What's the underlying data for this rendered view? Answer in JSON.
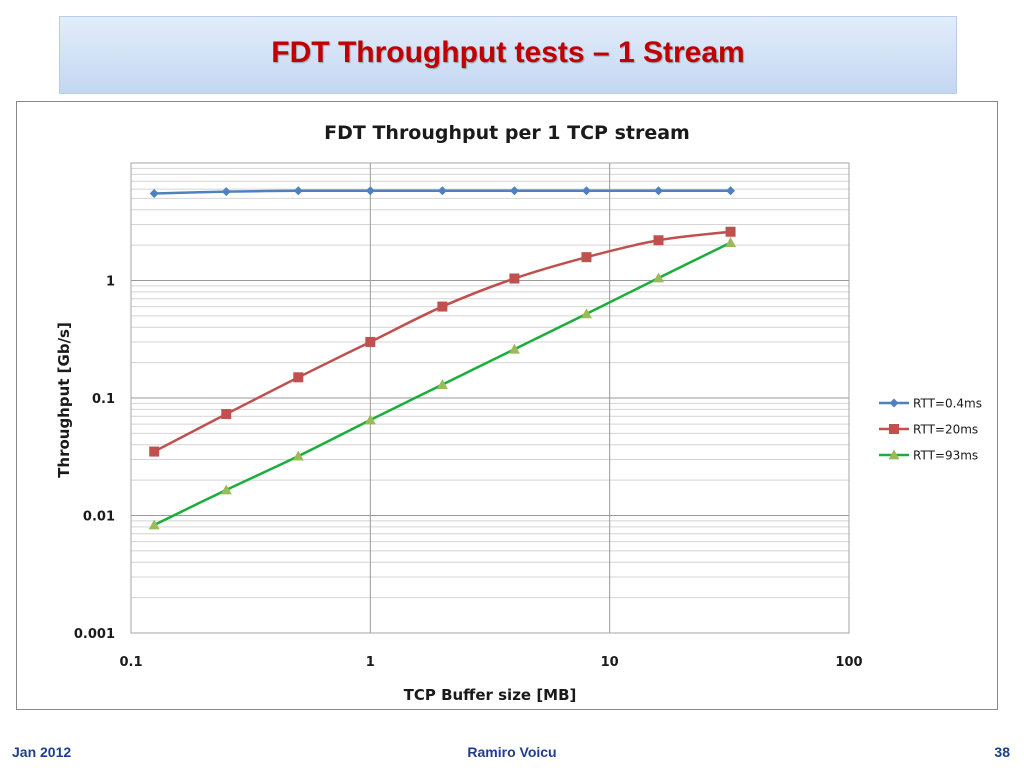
{
  "slide": {
    "title": "FDT Throughput tests – 1 Stream",
    "footer_left": "Jan 2012",
    "footer_center": "Ramiro Voicu",
    "footer_right": "38"
  },
  "colors": {
    "title": "#c00000",
    "footer": "#1f3d8c",
    "banner": "#c3d7f2"
  },
  "chart_data": {
    "type": "line",
    "title": "FDT Throughput  per 1 TCP stream",
    "xlabel": "TCP Buffer size [MB]",
    "ylabel": "Throughput [Gb/s]",
    "xscale": "log",
    "yscale": "log",
    "xlim": [
      0.1,
      100
    ],
    "ylim": [
      0.001,
      10
    ],
    "xticks": [
      {
        "value": 0.1,
        "label": "0.1"
      },
      {
        "value": 1,
        "label": "1"
      },
      {
        "value": 10,
        "label": "10"
      },
      {
        "value": 100,
        "label": "100"
      }
    ],
    "yticks": [
      {
        "value": 0.001,
        "label": "0.001"
      },
      {
        "value": 0.01,
        "label": "0.01"
      },
      {
        "value": 0.1,
        "label": "0.1"
      },
      {
        "value": 1,
        "label": "1"
      }
    ],
    "grid": true,
    "legend_position": "right",
    "x": [
      0.125,
      0.25,
      0.5,
      1,
      2,
      4,
      8,
      16,
      32
    ],
    "series": [
      {
        "name": "RTT=0.4ms",
        "color": "#4f81bd",
        "marker": "diamond",
        "values": [
          5.5,
          5.7,
          5.8,
          5.8,
          5.8,
          5.8,
          5.8,
          5.8,
          5.8
        ]
      },
      {
        "name": "RTT=20ms",
        "color": "#c0504d",
        "marker": "square",
        "values": [
          0.035,
          0.073,
          0.15,
          0.3,
          0.6,
          1.04,
          1.58,
          2.2,
          2.6
        ]
      },
      {
        "name": "RTT=93ms",
        "color": "#9bbb59",
        "line_color": "#1aae3c",
        "marker": "triangle",
        "values": [
          0.0083,
          0.0165,
          0.032,
          0.065,
          0.13,
          0.26,
          0.52,
          1.05,
          2.1
        ]
      }
    ]
  }
}
